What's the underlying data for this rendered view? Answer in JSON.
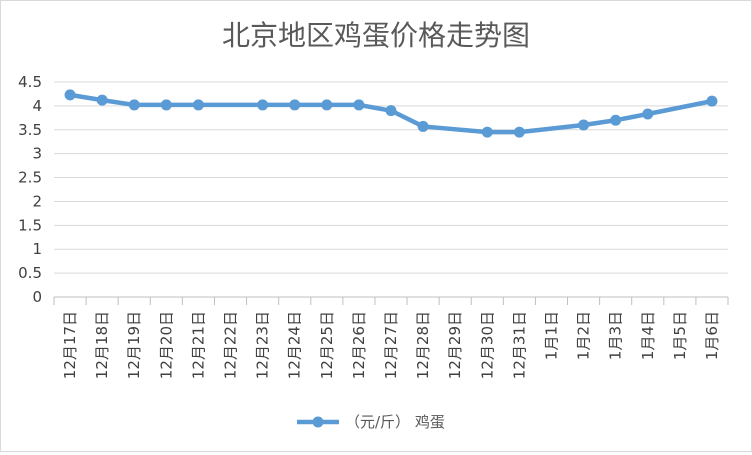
{
  "chart_data": {
    "type": "line",
    "title": "北京地区鸡蛋价格走势图",
    "categories": [
      "12月17日",
      "12月18日",
      "12月19日",
      "12月20日",
      "12月21日",
      "12月22日",
      "12月23日",
      "12月24日",
      "12月25日",
      "12月26日",
      "12月27日",
      "12月28日",
      "12月29日",
      "12月30日",
      "12月31日",
      "1月1日",
      "1月2日",
      "1月3日",
      "1月4日",
      "1月5日",
      "1月6日"
    ],
    "series": [
      {
        "name": "（元/斤） 鸡蛋",
        "values": [
          4.23,
          4.12,
          4.02,
          4.02,
          4.02,
          null,
          4.02,
          4.02,
          4.02,
          4.02,
          3.9,
          3.57,
          null,
          3.45,
          3.45,
          null,
          3.6,
          3.7,
          3.83,
          null,
          4.1
        ],
        "color": "#5b9bd5"
      }
    ],
    "ylim": [
      0,
      4.5
    ],
    "yticks": [
      "0",
      "0.5",
      "1",
      "1.5",
      "2",
      "2.5",
      "3",
      "3.5",
      "4",
      "4.5"
    ],
    "ytick_values": [
      0,
      0.5,
      1,
      1.5,
      2,
      2.5,
      3,
      3.5,
      4,
      4.5
    ],
    "grid": true,
    "legend_position": "bottom",
    "colors": {
      "grid": "#d9d9d9",
      "axis": "#bfbfbf",
      "text": "#595959"
    }
  }
}
